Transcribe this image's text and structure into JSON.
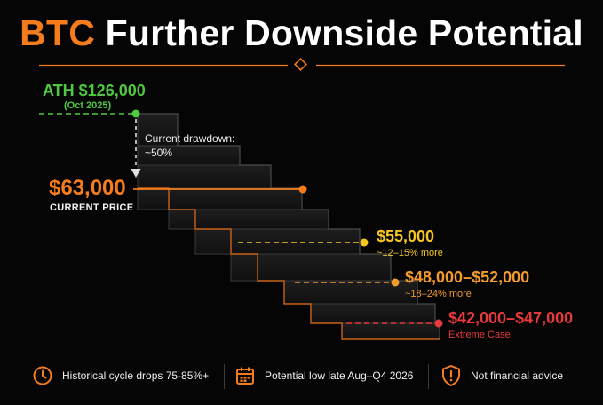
{
  "title": {
    "accent": "BTC",
    "rest": "Further Downside Potential"
  },
  "ath": {
    "price": "ATH $126,000",
    "date": "(Oct 2025)"
  },
  "drawdown": {
    "line1": "Current drawdown:",
    "line2": "~50%"
  },
  "current": {
    "price": "$63,000",
    "label": "CURRENT PRICE"
  },
  "targets": [
    {
      "price": "$55,000",
      "note": "~12–15% more"
    },
    {
      "price": "$48,000–$52,000",
      "note": "~18–24% more"
    },
    {
      "price": "$42,000–$47,000",
      "note": "Extreme Case"
    }
  ],
  "footer": [
    {
      "text": "Historical cycle drops 75-85%+",
      "icon": "clock-icon"
    },
    {
      "text": "Potential low late Aug–Q4 2026",
      "icon": "calendar-icon"
    },
    {
      "text": "Not financial advice",
      "icon": "shield-alert-icon"
    }
  ],
  "colors": {
    "orange": "#f47c1c",
    "green": "#4fc93f",
    "yellow": "#f5c623",
    "amber": "#f39a2c",
    "red": "#e8393b",
    "background": "#050505"
  }
}
